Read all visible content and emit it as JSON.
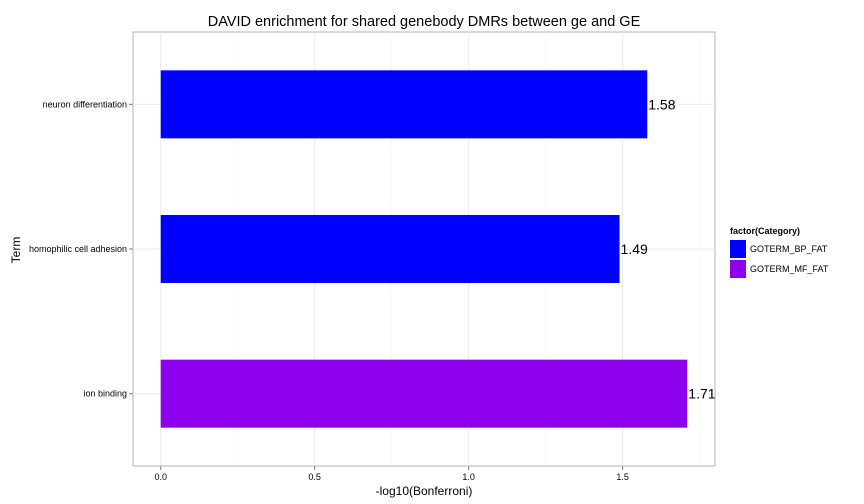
{
  "chart_data": {
    "type": "bar",
    "orientation": "horizontal",
    "title": "DAVID enrichment for shared genebody DMRs between ge and GE",
    "xlabel": "-log10(Bonferroni)",
    "ylabel": "Term",
    "xlim": [
      -0.09,
      1.8
    ],
    "x_ticks": [
      "0.0",
      "0.5",
      "1.0",
      "1.5"
    ],
    "categories": [
      "neuron differentiation",
      "homophilic cell adhesion",
      "ion binding"
    ],
    "values": [
      1.58,
      1.49,
      1.71
    ],
    "value_labels": [
      "1.58",
      "1.49",
      "1.71"
    ],
    "bar_category": [
      "GOTERM_BP_FAT",
      "GOTERM_BP_FAT",
      "GOTERM_MF_FAT"
    ],
    "grid": true,
    "legend": {
      "title": "factor(Category)",
      "position": "right",
      "entries": [
        {
          "name": "GOTERM_BP_FAT",
          "color": "#0000ff"
        },
        {
          "name": "GOTERM_MF_FAT",
          "color": "#8c00ee"
        }
      ]
    }
  }
}
